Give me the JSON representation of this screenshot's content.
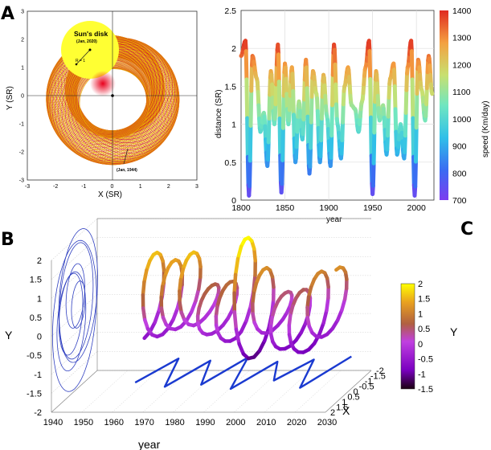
{
  "panels": {
    "A": "A",
    "B": "B",
    "C": "C"
  },
  "chart_data": [
    {
      "id": "A",
      "type": "scatter",
      "title": "",
      "xlabel": "X (SR)",
      "ylabel": "Y (SR)",
      "xlim": [
        -3,
        3
      ],
      "ylim": [
        -3,
        3
      ],
      "xticks": [
        "-3",
        "-2",
        "-1",
        "0",
        "1",
        "2",
        "3"
      ],
      "yticks": [
        "3",
        "2",
        "1",
        "0",
        "-1",
        "-2",
        "-3"
      ],
      "annotations": {
        "disk_title": "Sun's disk",
        "disk_date": "(Jan, 2020)",
        "radius_label": "R = 1",
        "start_date": "(Jan, 1944)"
      },
      "sun_disk": {
        "center": [
          -0.8,
          1.6
        ],
        "radius": 1
      },
      "start_point": [
        0.8,
        -1.9
      ],
      "colors": {
        "trajectory": "#e8a000",
        "edge": "#d0202a",
        "disk": "#ffff33",
        "center": "#e8001c"
      }
    },
    {
      "id": "A-right",
      "type": "line",
      "title": "",
      "xlabel": "year",
      "ylabel": "distance (SR)",
      "colorbar_label": "speed (Km/day)",
      "xlim": [
        1800,
        2020
      ],
      "ylim": [
        0,
        2.5
      ],
      "xticks": [
        "1800",
        "1850",
        "1900",
        "1950",
        "2000"
      ],
      "yticks": [
        "0",
        "0.5",
        "1",
        "1.5",
        "2",
        "2.5"
      ],
      "colorbar_ticks": [
        "700",
        "800",
        "900",
        "1000",
        "1100",
        "1200",
        "1300",
        "1400"
      ],
      "colorbar_range": [
        700,
        1400
      ],
      "x": [
        1800,
        1805,
        1809,
        1813,
        1818,
        1822,
        1826,
        1830,
        1834,
        1838,
        1842,
        1846,
        1850,
        1854,
        1858,
        1862,
        1866,
        1870,
        1874,
        1878,
        1882,
        1886,
        1890,
        1894,
        1898,
        1902,
        1906,
        1910,
        1914,
        1918,
        1922,
        1926,
        1930,
        1934,
        1938,
        1942,
        1946,
        1950,
        1954,
        1958,
        1962,
        1966,
        1970,
        1974,
        1978,
        1982,
        1986,
        1990,
        1994,
        1998,
        2002,
        2006,
        2010,
        2014,
        2018
      ],
      "y": [
        1.9,
        2.1,
        0.06,
        1.9,
        1.6,
        0.9,
        1.15,
        0.45,
        1.7,
        1.0,
        2.05,
        0.1,
        1.8,
        1.0,
        1.75,
        0.5,
        1.3,
        0.8,
        1.85,
        0.35,
        1.7,
        1.4,
        0.5,
        1.65,
        1.1,
        0.45,
        2.05,
        1.0,
        0.55,
        1.5,
        1.75,
        1.25,
        1.2,
        0.9,
        1.3,
        1.75,
        2.1,
        0.08,
        1.7,
        1.05,
        1.25,
        0.6,
        1.6,
        1.8,
        0.6,
        1.0,
        0.55,
        1.75,
        2.1,
        0.06,
        1.85,
        1.45,
        1.05,
        1.9,
        1.4
      ]
    },
    {
      "id": "B",
      "type": "line",
      "title": "",
      "xlabel": "year",
      "ylabel": "Y",
      "zlabel": "X",
      "colorbar_label": "Y",
      "xlim": [
        1940,
        2030
      ],
      "ylim": [
        -2,
        2
      ],
      "xticks": [
        "1940",
        "1950",
        "1960",
        "1970",
        "1980",
        "1990",
        "2000",
        "2010",
        "2020",
        "2030"
      ],
      "yticks": [
        "2",
        "1.5",
        "1",
        "0.5",
        "0",
        "-0.5",
        "-1",
        "-1.5",
        "-2"
      ],
      "zticks": [
        "2",
        "1.5",
        "1",
        "0.5",
        "0",
        "-0.5",
        "-1",
        "-1.5",
        "-2"
      ],
      "colorbar_ticks": [
        "2",
        "1.5",
        "1",
        "0.5",
        "0",
        "-0.5",
        "-1",
        "-1.5"
      ],
      "colorbar_range": [
        -1.5,
        2
      ],
      "x": [
        1963,
        1966,
        1969,
        1972,
        1975,
        1978,
        1981,
        1984,
        1987,
        1990,
        1993,
        1996,
        1999,
        2002,
        2005,
        2008,
        2011,
        2014,
        2017,
        2020,
        2023,
        2026
      ],
      "y": [
        -0.6,
        1.6,
        -0.5,
        1.4,
        -0.3,
        1.6,
        -0.2,
        0.7,
        -0.4,
        0.8,
        -0.6,
        2.0,
        -1.1,
        1.2,
        -0.4,
        0.5,
        -0.8,
        0.6,
        -0.9,
        1.1,
        -0.5,
        1.2
      ]
    }
  ]
}
